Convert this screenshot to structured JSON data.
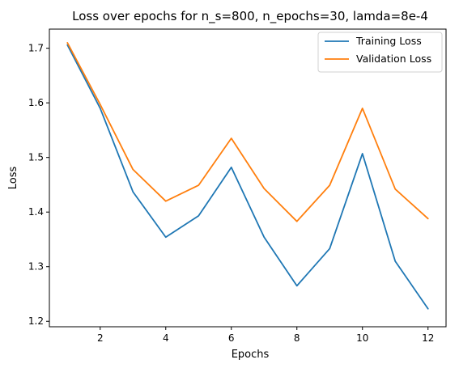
{
  "chart_data": {
    "type": "line",
    "title": "Loss over epochs for n_s=800, n_epochs=30, lamda=8e-4",
    "xlabel": "Epochs",
    "ylabel": "Loss",
    "x": [
      1,
      2,
      3,
      4,
      5,
      6,
      7,
      8,
      9,
      10,
      11,
      12
    ],
    "xlim": [
      0.45,
      12.55
    ],
    "ylim": [
      1.19,
      1.735
    ],
    "xticks": [
      2,
      4,
      6,
      8,
      10,
      12
    ],
    "yticks": [
      1.2,
      1.3,
      1.4,
      1.5,
      1.6,
      1.7
    ],
    "xtick_labels": [
      "2",
      "4",
      "6",
      "8",
      "10",
      "12"
    ],
    "ytick_labels": [
      "1.2",
      "1.3",
      "1.4",
      "1.5",
      "1.6",
      "1.7"
    ],
    "grid": false,
    "legend": "top-right",
    "series": [
      {
        "name": "Training Loss",
        "color": "#1f77b4",
        "values": [
          1.706,
          1.59,
          1.437,
          1.354,
          1.393,
          1.482,
          1.354,
          1.265,
          1.333,
          1.507,
          1.31,
          1.223
        ]
      },
      {
        "name": "Validation Loss",
        "color": "#ff7f0e",
        "values": [
          1.71,
          1.597,
          1.478,
          1.42,
          1.449,
          1.535,
          1.443,
          1.383,
          1.449,
          1.59,
          1.442,
          1.388
        ]
      }
    ]
  }
}
